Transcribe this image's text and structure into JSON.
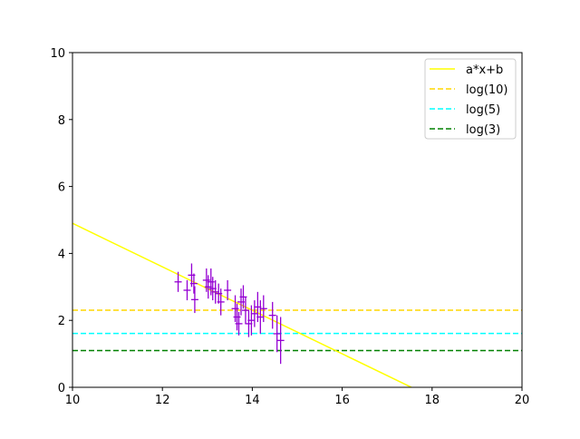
{
  "chart_data": {
    "type": "scatter",
    "title": "",
    "xlabel": "",
    "ylabel": "",
    "xlim": [
      10,
      20
    ],
    "ylim": [
      0,
      10
    ],
    "xticks": [
      10,
      12,
      14,
      16,
      18,
      20
    ],
    "yticks": [
      0,
      2,
      4,
      6,
      8,
      10
    ],
    "grid": false,
    "legend_position": "top-right",
    "points": [
      {
        "x": 12.35,
        "y": 3.15,
        "err": 0.3
      },
      {
        "x": 12.55,
        "y": 2.9,
        "err": 0.3
      },
      {
        "x": 12.65,
        "y": 3.35,
        "err": 0.35
      },
      {
        "x": 12.72,
        "y": 2.62,
        "err": 0.4
      },
      {
        "x": 12.7,
        "y": 3.1,
        "err": 0.3
      },
      {
        "x": 12.98,
        "y": 3.2,
        "err": 0.35
      },
      {
        "x": 13.02,
        "y": 3.0,
        "err": 0.35
      },
      {
        "x": 13.08,
        "y": 3.15,
        "err": 0.4
      },
      {
        "x": 13.12,
        "y": 2.95,
        "err": 0.35
      },
      {
        "x": 13.18,
        "y": 2.85,
        "err": 0.35
      },
      {
        "x": 13.25,
        "y": 2.8,
        "err": 0.3
      },
      {
        "x": 13.3,
        "y": 2.55,
        "err": 0.4
      },
      {
        "x": 13.45,
        "y": 2.9,
        "err": 0.3
      },
      {
        "x": 13.62,
        "y": 2.35,
        "err": 0.4
      },
      {
        "x": 13.66,
        "y": 2.1,
        "err": 0.4
      },
      {
        "x": 13.7,
        "y": 1.9,
        "err": 0.35
      },
      {
        "x": 13.75,
        "y": 2.55,
        "err": 0.4
      },
      {
        "x": 13.8,
        "y": 2.7,
        "err": 0.35
      },
      {
        "x": 13.85,
        "y": 2.3,
        "err": 0.4
      },
      {
        "x": 13.92,
        "y": 1.9,
        "err": 0.4
      },
      {
        "x": 13.98,
        "y": 2.0,
        "err": 0.45
      },
      {
        "x": 14.05,
        "y": 2.2,
        "err": 0.4
      },
      {
        "x": 14.12,
        "y": 2.4,
        "err": 0.45
      },
      {
        "x": 14.18,
        "y": 2.1,
        "err": 0.5
      },
      {
        "x": 14.25,
        "y": 2.35,
        "err": 0.4
      },
      {
        "x": 14.45,
        "y": 2.15,
        "err": 0.4
      },
      {
        "x": 14.55,
        "y": 1.6,
        "err": 0.55
      },
      {
        "x": 14.63,
        "y": 1.4,
        "err": 0.7
      }
    ],
    "point_color": "#9400d3",
    "series": [
      {
        "name": "a*x+b",
        "kind": "line",
        "style": "solid",
        "color": "#ffff00",
        "slope": -0.65,
        "intercept": 11.4
      },
      {
        "name": "log(10)",
        "kind": "hline",
        "style": "dashed",
        "color": "#ffd700",
        "y": 2.302585
      },
      {
        "name": "log(5)",
        "kind": "hline",
        "style": "dashed",
        "color": "#00ffff",
        "y": 1.609438
      },
      {
        "name": "log(3)",
        "kind": "hline",
        "style": "dashed",
        "color": "#008000",
        "y": 1.098612
      }
    ]
  }
}
